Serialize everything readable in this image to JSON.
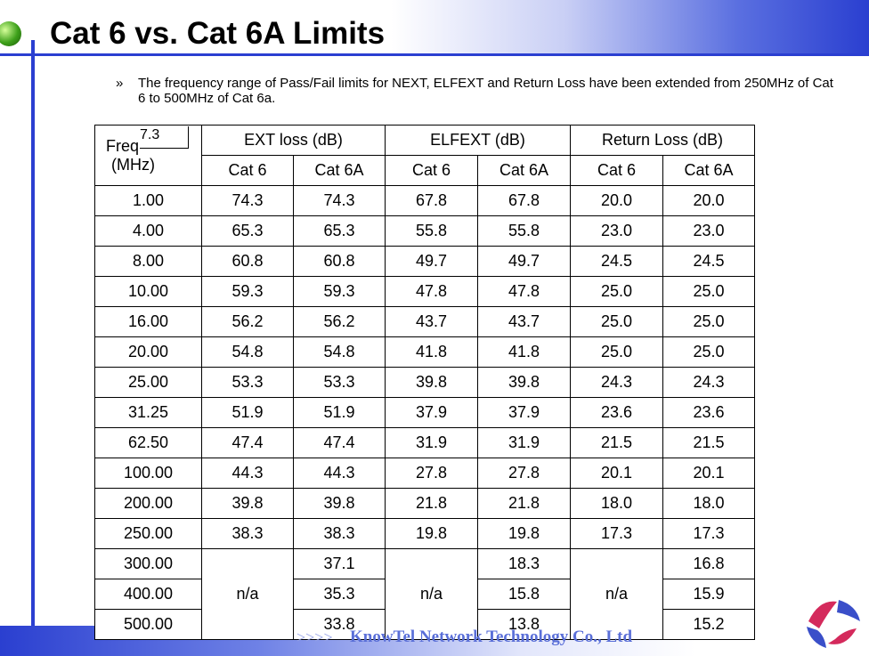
{
  "header": {
    "title": "Cat 6 vs. Cat 6A Limits"
  },
  "bullet": {
    "marker": "»",
    "text": "The frequency range of Pass/Fail limits for NEXT, ELFEXT and Return Loss have been extended from 250MHz of Cat 6 to 500MHz of Cat 6a."
  },
  "table": {
    "freq_header": [
      "Freq",
      "(MHz)"
    ],
    "overlay": "7.3",
    "groups": [
      "EXT loss (dB)",
      "ELFEXT (dB)",
      "Return Loss (dB)"
    ],
    "sub_headers": [
      "Cat 6",
      "Cat 6A",
      "Cat 6",
      "Cat 6A",
      "Cat 6",
      "Cat 6A"
    ],
    "rows": [
      [
        "1.00",
        "74.3",
        "74.3",
        "67.8",
        "67.8",
        "20.0",
        "20.0"
      ],
      [
        "4.00",
        "65.3",
        "65.3",
        "55.8",
        "55.8",
        "23.0",
        "23.0"
      ],
      [
        "8.00",
        "60.8",
        "60.8",
        "49.7",
        "49.7",
        "24.5",
        "24.5"
      ],
      [
        "10.00",
        "59.3",
        "59.3",
        "47.8",
        "47.8",
        "25.0",
        "25.0"
      ],
      [
        "16.00",
        "56.2",
        "56.2",
        "43.7",
        "43.7",
        "25.0",
        "25.0"
      ],
      [
        "20.00",
        "54.8",
        "54.8",
        "41.8",
        "41.8",
        "25.0",
        "25.0"
      ],
      [
        "25.00",
        "53.3",
        "53.3",
        "39.8",
        "39.8",
        "24.3",
        "24.3"
      ],
      [
        "31.25",
        "51.9",
        "51.9",
        "37.9",
        "37.9",
        "23.6",
        "23.6"
      ],
      [
        "62.50",
        "47.4",
        "47.4",
        "31.9",
        "31.9",
        "21.5",
        "21.5"
      ],
      [
        "100.00",
        "44.3",
        "44.3",
        "27.8",
        "27.8",
        "20.1",
        "20.1"
      ],
      [
        "200.00",
        "39.8",
        "39.8",
        "21.8",
        "21.8",
        "18.0",
        "18.0"
      ],
      [
        "250.00",
        "38.3",
        "38.3",
        "19.8",
        "19.8",
        "17.3",
        "17.3"
      ],
      [
        "300.00",
        "n/a",
        "37.1",
        "n/a",
        "18.3",
        "n/a",
        "16.8"
      ],
      [
        "400.00",
        "35.3",
        "15.8",
        "15.9"
      ],
      [
        "500.00",
        "33.8",
        "13.8",
        "15.2"
      ]
    ]
  },
  "footer": {
    "arrows": ">>>>",
    "company": "KnowTel Network Technology Co., Ltd"
  }
}
